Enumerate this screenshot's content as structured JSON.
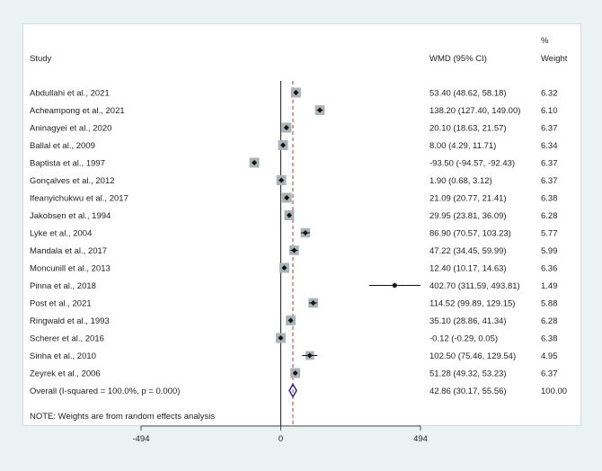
{
  "headers": {
    "study": "Study",
    "effect": "WMD (95% CI)",
    "weight_line1": "%",
    "weight_line2": "Weight"
  },
  "note": "NOTE: Weights are from random effects analysis",
  "colors": {
    "background": "#eaf2f3",
    "panel": "#ffffff",
    "box": "#a9b4b8",
    "marker": "#111111",
    "overall_diamond": "#2c1b8f",
    "overall_line": "#b03a3a"
  },
  "chart_data": {
    "type": "forest",
    "xlim": [
      -494,
      494
    ],
    "x_ticks": [
      -494,
      0,
      494
    ],
    "x_tick_labels": [
      "-494",
      "0",
      "494"
    ],
    "reference_line": 0,
    "overall_line": 42.86,
    "studies": [
      {
        "name": "Abdullahi et al., 2021",
        "est": 53.4,
        "lo": 48.62,
        "hi": 58.18,
        "ci_text": "53.40 (48.62, 58.18)",
        "weight": 6.32,
        "weight_text": "6.32"
      },
      {
        "name": "Acheampong et al., 2021",
        "est": 138.2,
        "lo": 127.4,
        "hi": 149.0,
        "ci_text": "138.20 (127.40, 149.00)",
        "weight": 6.1,
        "weight_text": "6.10"
      },
      {
        "name": "Aninagyei et al., 2020",
        "est": 20.1,
        "lo": 18.63,
        "hi": 21.57,
        "ci_text": "20.10 (18.63, 21.57)",
        "weight": 6.37,
        "weight_text": "6.37"
      },
      {
        "name": "Ballal et al., 2009",
        "est": 8.0,
        "lo": 4.29,
        "hi": 11.71,
        "ci_text": "8.00 (4.29, 11.71)",
        "weight": 6.34,
        "weight_text": "6.34"
      },
      {
        "name": "Baptista et al., 1997",
        "est": -93.5,
        "lo": -94.57,
        "hi": -92.43,
        "ci_text": "-93.50 (-94.57, -92.43)",
        "weight": 6.37,
        "weight_text": "6.37"
      },
      {
        "name": "Gonçalves et al., 2012",
        "est": 1.9,
        "lo": 0.68,
        "hi": 3.12,
        "ci_text": "1.90 (0.68, 3.12)",
        "weight": 6.37,
        "weight_text": "6.37"
      },
      {
        "name": "Ifeanyichukwu et al., 2017",
        "est": 21.09,
        "lo": 20.77,
        "hi": 21.41,
        "ci_text": "21.09 (20.77, 21.41)",
        "weight": 6.38,
        "weight_text": "6.38"
      },
      {
        "name": "Jakobsen et al., 1994",
        "est": 29.95,
        "lo": 23.81,
        "hi": 36.09,
        "ci_text": "29.95 (23.81, 36.09)",
        "weight": 6.28,
        "weight_text": "6.28"
      },
      {
        "name": "Lyke et al., 2004",
        "est": 86.9,
        "lo": 70.57,
        "hi": 103.23,
        "ci_text": "86.90 (70.57, 103.23)",
        "weight": 5.77,
        "weight_text": "5.77"
      },
      {
        "name": "Mandala et al., 2017",
        "est": 47.22,
        "lo": 34.45,
        "hi": 59.99,
        "ci_text": "47.22 (34.45, 59.99)",
        "weight": 5.99,
        "weight_text": "5.99"
      },
      {
        "name": "Moncunill et al., 2013",
        "est": 12.4,
        "lo": 10.17,
        "hi": 14.63,
        "ci_text": "12.40 (10.17, 14.63)",
        "weight": 6.36,
        "weight_text": "6.36"
      },
      {
        "name": "Pinna et al., 2018",
        "est": 402.7,
        "lo": 311.59,
        "hi": 493.81,
        "ci_text": "402.70 (311.59, 493.81)",
        "weight": 1.49,
        "weight_text": "1.49"
      },
      {
        "name": "Post et al., 2021",
        "est": 114.52,
        "lo": 99.89,
        "hi": 129.15,
        "ci_text": "114.52 (99.89, 129.15)",
        "weight": 5.88,
        "weight_text": "5.88"
      },
      {
        "name": "Ringwald et al., 1993",
        "est": 35.1,
        "lo": 28.86,
        "hi": 41.34,
        "ci_text": "35.10 (28.86, 41.34)",
        "weight": 6.28,
        "weight_text": "6.28"
      },
      {
        "name": "Scherer et al., 2016",
        "est": -0.12,
        "lo": -0.29,
        "hi": 0.05,
        "ci_text": "-0.12 (-0.29, 0.05)",
        "weight": 6.38,
        "weight_text": "6.38"
      },
      {
        "name": "Sinha et al., 2010",
        "est": 102.5,
        "lo": 75.46,
        "hi": 129.54,
        "ci_text": "102.50 (75.46, 129.54)",
        "weight": 4.95,
        "weight_text": "4.95"
      },
      {
        "name": "Zeyrek et al., 2006",
        "est": 51.28,
        "lo": 49.32,
        "hi": 53.23,
        "ci_text": "51.28 (49.32, 53.23)",
        "weight": 6.37,
        "weight_text": "6.37"
      }
    ],
    "overall": {
      "name": "Overall  (I-squared = 100.0%, p = 0.000)",
      "est": 42.86,
      "lo": 30.17,
      "hi": 55.56,
      "ci_text": "42.86 (30.17, 55.56)",
      "weight": 100.0,
      "weight_text": "100.00"
    }
  }
}
